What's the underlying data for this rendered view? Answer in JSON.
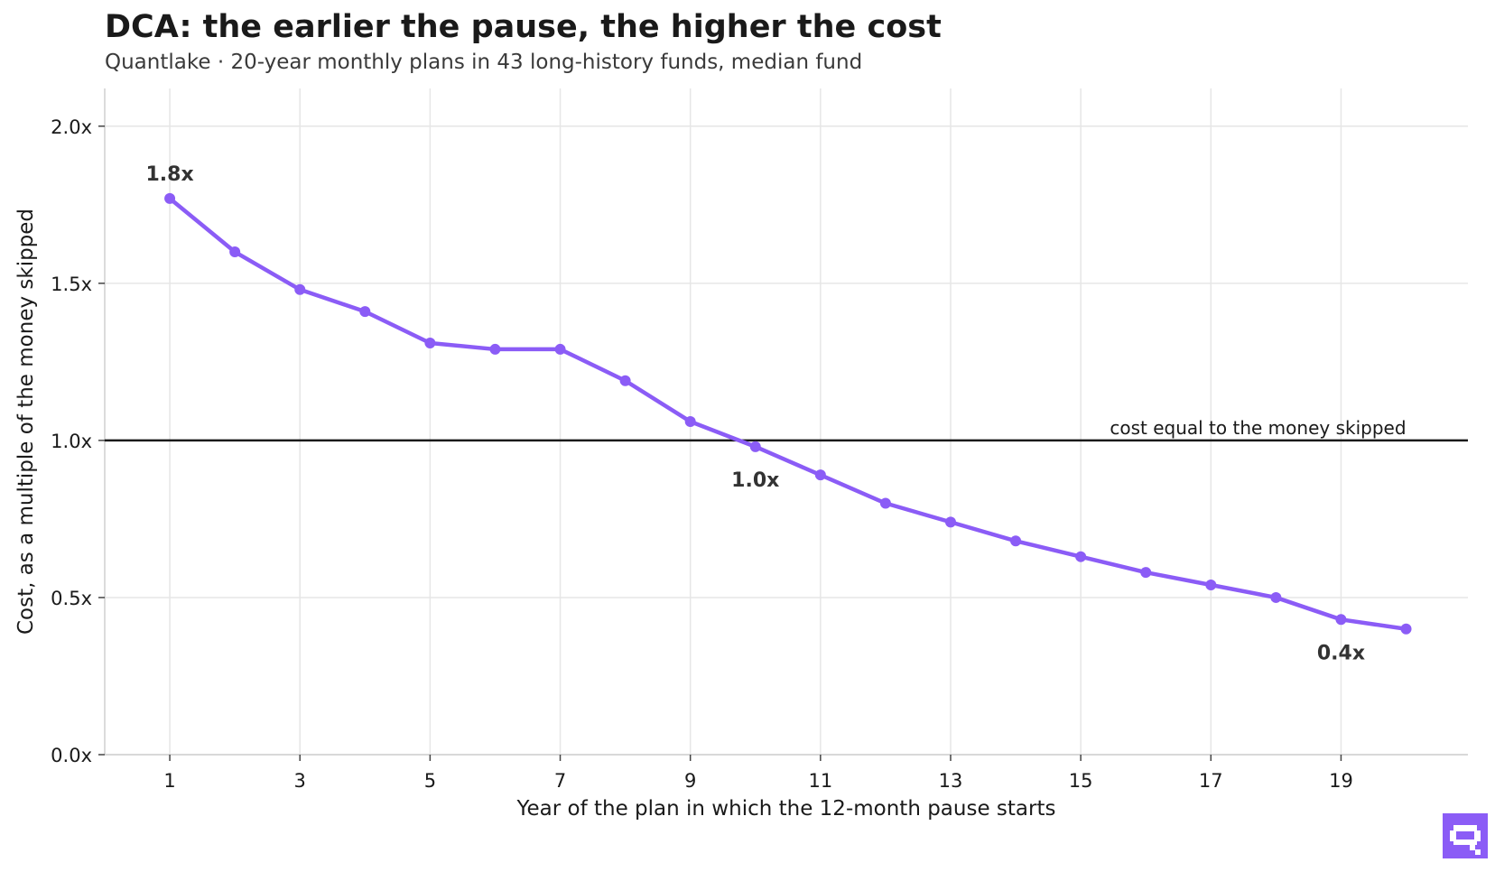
{
  "title": "DCA: the earlier the pause, the higher the cost",
  "subtitle": "Quantlake  ·  20-year monthly plans in 43 long-history funds, median fund",
  "colors": {
    "line": "#8b5cf6",
    "reference": "#1a1a1a",
    "grid": "#e6e6e6",
    "axis": "#cfcfcf",
    "text": "#1a1a1a",
    "logo": "#8b5cf6"
  },
  "logo": {
    "icon": "quantlake-logo-icon"
  },
  "chart_data": {
    "type": "line",
    "title": "DCA: the earlier the pause, the higher the cost",
    "xlabel": "Year of the plan in which the 12-month pause starts",
    "ylabel": "Cost, as a multiple of the money skipped",
    "x": [
      1,
      2,
      3,
      4,
      5,
      6,
      7,
      8,
      9,
      10,
      11,
      12,
      13,
      14,
      15,
      16,
      17,
      18,
      19,
      20
    ],
    "series": [
      {
        "values": [
          1.77,
          1.6,
          1.48,
          1.41,
          1.31,
          1.29,
          1.29,
          1.19,
          1.06,
          0.98,
          0.89,
          0.8,
          0.74,
          0.68,
          0.63,
          0.58,
          0.54,
          0.5,
          0.43,
          0.4
        ]
      }
    ],
    "xlim": [
      0.0,
      20.95
    ],
    "ylim": [
      0.0,
      2.12
    ],
    "xticks": [
      1,
      3,
      5,
      7,
      9,
      11,
      13,
      15,
      17,
      19
    ],
    "xtick_labels": [
      "1",
      "3",
      "5",
      "7",
      "9",
      "11",
      "13",
      "15",
      "17",
      "19"
    ],
    "yticks": [
      0.0,
      0.5,
      1.0,
      1.5,
      2.0
    ],
    "ytick_labels": [
      "0.0x",
      "0.5x",
      "1.0x",
      "1.5x",
      "2.0x"
    ],
    "grid": true,
    "reference_line": {
      "y": 1.0,
      "label": "cost equal to the money skipped"
    },
    "annotations": [
      {
        "x": 1,
        "y": 1.77,
        "text": "1.8x",
        "position": "above"
      },
      {
        "x": 10,
        "y": 0.98,
        "text": "1.0x",
        "position": "below"
      },
      {
        "x": 19,
        "y": 0.43,
        "text": "0.4x",
        "position": "below"
      }
    ]
  }
}
